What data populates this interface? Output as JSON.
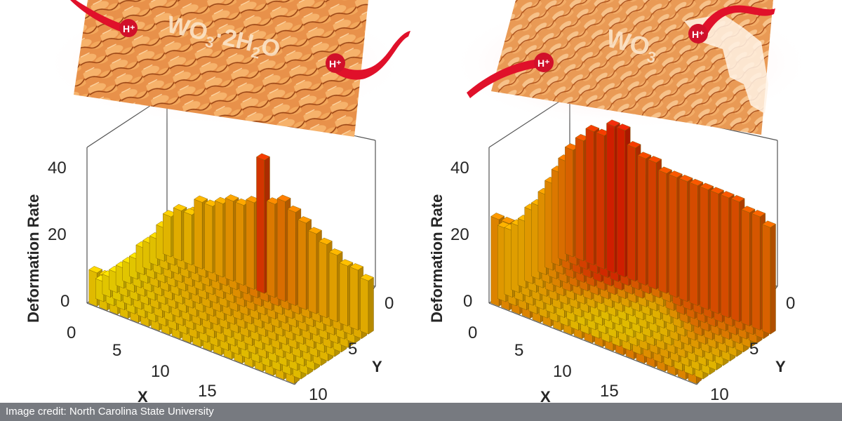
{
  "colors": {
    "low_bar": "#f5e800",
    "mid_bar": "#f2a400",
    "high_bar": "#e01a00",
    "proton": "#e0102a",
    "afm_dark": "#b8571a",
    "afm_light": "#f6b26b"
  },
  "credit": {
    "text": "Image credit: North Carolina State University"
  },
  "panels": [
    {
      "overlay": {
        "label_main": "WO",
        "label_sub1": "3",
        "label_mid": "·2H",
        "label_sub2": "2",
        "label_end": "O",
        "proton_label": "H⁺"
      },
      "zlabel": "Deformation Rate"
    },
    {
      "overlay": {
        "label_main": "WO",
        "label_sub1": "3",
        "label_mid": "",
        "label_sub2": "",
        "label_end": "",
        "proton_label": "H⁺"
      },
      "zlabel": "Deformation Rate"
    }
  ],
  "chart_data": [
    {
      "type": "bar3d",
      "title": "",
      "xlabel": "X",
      "ylabel": "Y",
      "zlabel": "Deformation Rate",
      "x_ticks": [
        5,
        10,
        15
      ],
      "y_ticks": [
        0,
        5,
        10
      ],
      "z_ticks": [
        0,
        20,
        40
      ],
      "zlim": [
        0,
        45
      ],
      "grid_size": [
        20,
        12
      ],
      "corner_tick": "0",
      "heights": [
        [
          12,
          15,
          15,
          20,
          20,
          22,
          24,
          24,
          26,
          40,
          28,
          30,
          28,
          26,
          24,
          22,
          20,
          18,
          18,
          16
        ],
        [
          10,
          14,
          16,
          18,
          20,
          22,
          24,
          24,
          26,
          28,
          28,
          28,
          26,
          24,
          22,
          20,
          18,
          18,
          16,
          16
        ],
        [
          8,
          12,
          14,
          16,
          18,
          20,
          22,
          22,
          24,
          26,
          26,
          24,
          22,
          22,
          20,
          18,
          16,
          16,
          14,
          14
        ],
        [
          8,
          10,
          14,
          16,
          18,
          18,
          20,
          22,
          22,
          24,
          24,
          22,
          22,
          20,
          18,
          18,
          16,
          14,
          14,
          14
        ],
        [
          8,
          10,
          12,
          14,
          16,
          18,
          18,
          20,
          20,
          22,
          22,
          20,
          20,
          18,
          18,
          16,
          16,
          14,
          14,
          12
        ],
        [
          6,
          8,
          12,
          14,
          14,
          16,
          18,
          18,
          20,
          20,
          20,
          20,
          18,
          18,
          16,
          16,
          14,
          14,
          12,
          12
        ],
        [
          6,
          8,
          10,
          12,
          14,
          14,
          16,
          16,
          18,
          18,
          18,
          18,
          16,
          16,
          16,
          14,
          14,
          12,
          12,
          12
        ],
        [
          6,
          8,
          10,
          10,
          12,
          14,
          14,
          16,
          16,
          18,
          16,
          16,
          16,
          14,
          14,
          14,
          12,
          12,
          12,
          12
        ],
        [
          6,
          8,
          8,
          10,
          12,
          12,
          14,
          14,
          16,
          16,
          16,
          14,
          14,
          14,
          12,
          12,
          12,
          12,
          10,
          10
        ],
        [
          6,
          6,
          8,
          10,
          10,
          12,
          12,
          14,
          14,
          14,
          14,
          14,
          12,
          12,
          12,
          12,
          10,
          10,
          10,
          10
        ],
        [
          6,
          6,
          8,
          8,
          10,
          10,
          12,
          12,
          12,
          14,
          12,
          12,
          12,
          12,
          10,
          10,
          10,
          10,
          10,
          10
        ],
        [
          10,
          10,
          10,
          10,
          12,
          12,
          12,
          12,
          12,
          12,
          12,
          12,
          12,
          12,
          12,
          12,
          12,
          12,
          14,
          14
        ]
      ]
    },
    {
      "type": "bar3d",
      "title": "",
      "xlabel": "X",
      "ylabel": "Y",
      "zlabel": "Deformation Rate",
      "x_ticks": [
        5,
        10,
        15
      ],
      "y_ticks": [
        0,
        5,
        10
      ],
      "z_ticks": [
        0,
        20,
        40
      ],
      "zlim": [
        0,
        45
      ],
      "grid_size": [
        20,
        12
      ],
      "corner_tick": "0",
      "heights": [
        [
          32,
          36,
          40,
          40,
          44,
          44,
          40,
          38,
          38,
          36,
          36,
          36,
          36,
          36,
          36,
          36,
          36,
          34,
          34,
          32
        ],
        [
          30,
          34,
          38,
          40,
          42,
          42,
          38,
          34,
          34,
          30,
          28,
          34,
          34,
          34,
          34,
          34,
          32,
          32,
          30,
          30
        ],
        [
          28,
          32,
          36,
          38,
          40,
          38,
          36,
          30,
          30,
          24,
          22,
          28,
          32,
          32,
          32,
          32,
          30,
          30,
          28,
          28
        ],
        [
          26,
          28,
          32,
          34,
          34,
          32,
          30,
          26,
          24,
          20,
          18,
          20,
          24,
          28,
          30,
          30,
          28,
          28,
          26,
          24
        ],
        [
          24,
          26,
          28,
          30,
          30,
          28,
          26,
          22,
          20,
          16,
          14,
          14,
          16,
          20,
          24,
          28,
          26,
          24,
          22,
          22
        ],
        [
          22,
          24,
          26,
          28,
          26,
          24,
          22,
          18,
          16,
          12,
          12,
          12,
          14,
          16,
          20,
          24,
          24,
          22,
          20,
          18
        ],
        [
          22,
          22,
          24,
          24,
          22,
          20,
          18,
          14,
          12,
          10,
          10,
          12,
          12,
          14,
          18,
          22,
          22,
          20,
          18,
          16
        ],
        [
          20,
          20,
          22,
          22,
          20,
          18,
          16,
          12,
          10,
          10,
          10,
          10,
          12,
          14,
          16,
          20,
          20,
          18,
          16,
          14
        ],
        [
          20,
          20,
          20,
          20,
          18,
          16,
          14,
          12,
          10,
          10,
          10,
          10,
          12,
          16,
          18,
          20,
          20,
          16,
          14,
          12
        ],
        [
          20,
          20,
          20,
          18,
          16,
          14,
          12,
          10,
          10,
          10,
          10,
          12,
          14,
          18,
          22,
          22,
          20,
          16,
          14,
          12
        ],
        [
          22,
          22,
          22,
          20,
          18,
          16,
          14,
          12,
          12,
          12,
          12,
          14,
          16,
          20,
          24,
          24,
          20,
          16,
          14,
          14
        ],
        [
          26,
          26,
          26,
          26,
          24,
          24,
          22,
          22,
          24,
          26,
          26,
          26,
          28,
          28,
          28,
          28,
          26,
          26,
          26,
          26
        ]
      ]
    }
  ]
}
